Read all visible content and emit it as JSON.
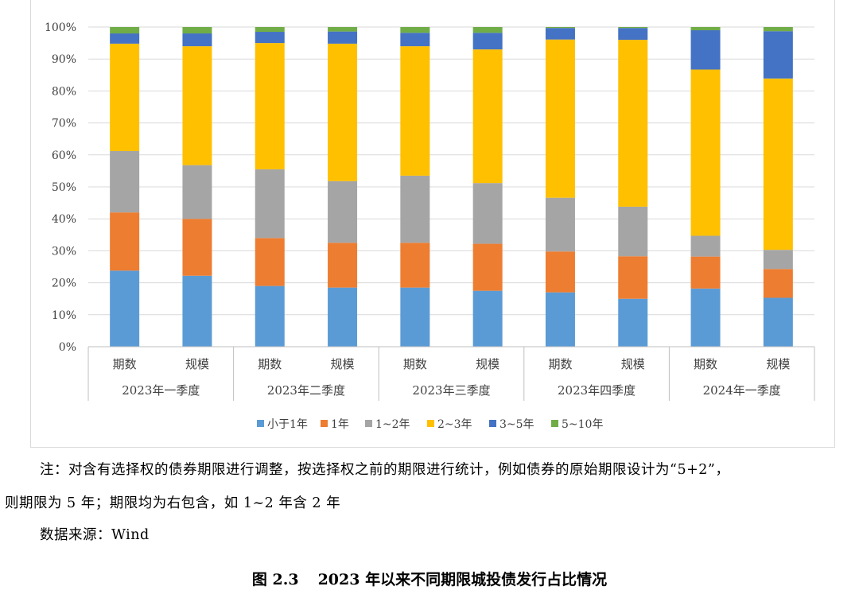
{
  "chart_data": {
    "type": "stacked-bar-100",
    "title": "",
    "ylim": [
      0,
      100
    ],
    "yticks": [
      "0%",
      "10%",
      "20%",
      "30%",
      "40%",
      "50%",
      "60%",
      "70%",
      "80%",
      "90%",
      "100%"
    ],
    "groups": [
      {
        "label": "2023年一季度",
        "categories": [
          "期数",
          "规模"
        ]
      },
      {
        "label": "2023年二季度",
        "categories": [
          "期数",
          "规模"
        ]
      },
      {
        "label": "2023年三季度",
        "categories": [
          "期数",
          "规模"
        ]
      },
      {
        "label": "2023年四季度",
        "categories": [
          "期数",
          "规模"
        ]
      },
      {
        "label": "2024年一季度",
        "categories": [
          "期数",
          "规模"
        ]
      }
    ],
    "series": [
      {
        "name": "小于1年",
        "color": "#5B9BD5",
        "values": [
          23.8,
          22.2,
          19.0,
          18.5,
          18.5,
          17.5,
          17.0,
          15.0,
          18.2,
          15.3
        ]
      },
      {
        "name": "1年",
        "color": "#ED7D31",
        "values": [
          18.2,
          17.8,
          15.0,
          14.0,
          14.0,
          14.7,
          12.8,
          13.3,
          10.0,
          9.0
        ]
      },
      {
        "name": "1~2年",
        "color": "#A5A5A5",
        "values": [
          19.2,
          16.8,
          21.5,
          19.3,
          21.0,
          19.0,
          16.8,
          15.5,
          6.5,
          6.0
        ]
      },
      {
        "name": "2~3年",
        "color": "#FFC000",
        "values": [
          33.6,
          37.2,
          39.5,
          43.0,
          40.5,
          41.8,
          49.5,
          52.2,
          52.0,
          53.6
        ]
      },
      {
        "name": "3~5年",
        "color": "#4472C4",
        "values": [
          3.2,
          4.0,
          3.5,
          3.8,
          4.2,
          5.2,
          3.6,
          3.7,
          12.3,
          14.8
        ]
      },
      {
        "name": "5~10年",
        "color": "#70AD47",
        "values": [
          2.0,
          2.0,
          1.5,
          1.4,
          1.8,
          1.8,
          0.3,
          0.3,
          1.0,
          1.3
        ]
      }
    ],
    "legend_position": "bottom"
  },
  "note": {
    "line1": "注：对含有选择权的债券期限进行调整，按选择权之前的期限进行统计，例如债券的原始期限设计为“5+2”，",
    "line2": "则期限为 5 年；期限均为右包含，如 1~2 年含 2 年"
  },
  "source": "数据来源：Wind",
  "caption": {
    "number": "图 2.3",
    "text": "2023 年以来不同期限城投债发行占比情况"
  }
}
